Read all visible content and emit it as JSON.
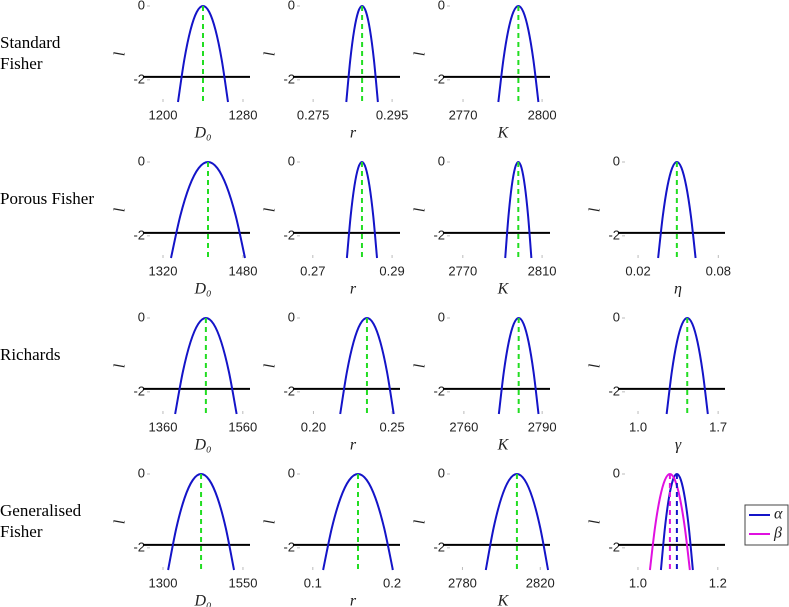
{
  "row_labels": [
    "Standard Fisher",
    "Porous Fisher",
    "Richards",
    "Generalised Fisher"
  ],
  "chart_data": [
    {
      "type": "line",
      "xlabel": "D₀",
      "ylabel": "l",
      "xlim": [
        1180,
        1287
      ],
      "ylim": [
        -2.6,
        0
      ],
      "xticks": [
        1200,
        1280
      ],
      "yticks": [
        0,
        -2
      ],
      "threshold": -1.92,
      "series": [
        {
          "color": "#1414c8",
          "mle": 1240,
          "mle_color": "#22dd22",
          "x": [
            1215,
            1221.25,
            1227.5,
            1233.75,
            1240,
            1246.25,
            1252.5,
            1258.75,
            1265
          ],
          "values": [
            -2.6,
            -1.4625,
            -0.65,
            -0.1625,
            0,
            -0.1625,
            -0.65,
            -1.4625,
            -2.6
          ]
        }
      ]
    },
    {
      "type": "line",
      "xlabel": "r",
      "ylabel": "l",
      "xlim": [
        0.2699,
        0.297
      ],
      "ylim": [
        -2.6,
        0
      ],
      "xticks": [
        0.275,
        0.295
      ],
      "yticks": [
        0,
        -2
      ],
      "threshold": -1.92,
      "series": [
        {
          "color": "#1414c8",
          "mle": 0.2874,
          "mle_color": "#22dd22",
          "x": [
            0.2834,
            0.2844,
            0.2854,
            0.2864,
            0.2874,
            0.2884,
            0.2894,
            0.2904,
            0.2914
          ],
          "values": [
            -2.6,
            -1.4625,
            -0.65,
            -0.1625,
            0,
            -0.1625,
            -0.65,
            -1.4625,
            -2.6
          ]
        }
      ]
    },
    {
      "type": "line",
      "xlabel": "K",
      "ylabel": "l",
      "xlim": [
        2762.4,
        2803
      ],
      "ylim": [
        -2.6,
        0
      ],
      "xticks": [
        2770,
        2800
      ],
      "yticks": [
        0,
        -2
      ],
      "threshold": -1.92,
      "series": [
        {
          "color": "#1414c8",
          "mle": 2791,
          "mle_color": "#22dd22",
          "x": [
            2783.4,
            2785.3,
            2787.2,
            2789.1,
            2791,
            2792.9,
            2794.8,
            2796.7,
            2798.6
          ],
          "values": [
            -2.6,
            -1.4625,
            -0.65,
            -0.1625,
            0,
            -0.1625,
            -0.65,
            -1.4625,
            -2.6
          ]
        }
      ]
    },
    {
      "type": "line",
      "xlabel": "D₀",
      "ylabel": "l",
      "xlim": [
        1280,
        1494
      ],
      "ylim": [
        -2.6,
        0
      ],
      "xticks": [
        1320,
        1480
      ],
      "yticks": [
        0,
        -2
      ],
      "threshold": -1.92,
      "series": [
        {
          "color": "#1414c8",
          "mle": 1410,
          "mle_color": "#22dd22",
          "x": [
            1336,
            1354.5,
            1373,
            1391.5,
            1410,
            1428.5,
            1447,
            1465.5,
            1484
          ],
          "values": [
            -2.6,
            -1.4625,
            -0.65,
            -0.1625,
            0,
            -0.1625,
            -0.65,
            -1.4625,
            -2.6
          ]
        }
      ]
    },
    {
      "type": "line",
      "xlabel": "r",
      "ylabel": "l",
      "xlim": [
        0.265,
        0.292
      ],
      "ylim": [
        -2.6,
        0
      ],
      "xticks": [
        0.27,
        0.29
      ],
      "yticks": [
        0,
        -2
      ],
      "threshold": -1.92,
      "series": [
        {
          "color": "#1414c8",
          "mle": 0.2824,
          "mle_color": "#22dd22",
          "x": [
            0.2786,
            0.27955,
            0.2805,
            0.28145,
            0.2824,
            0.28335,
            0.2843,
            0.28525,
            0.2862
          ],
          "values": [
            -2.6,
            -1.4625,
            -0.65,
            -0.1625,
            0,
            -0.1625,
            -0.65,
            -1.4625,
            -2.6
          ]
        }
      ]
    },
    {
      "type": "line",
      "xlabel": "K",
      "ylabel": "l",
      "xlim": [
        2760,
        2814
      ],
      "ylim": [
        -2.6,
        0
      ],
      "xticks": [
        2770,
        2810
      ],
      "yticks": [
        0,
        -2
      ],
      "threshold": -1.92,
      "series": [
        {
          "color": "#1414c8",
          "mle": 2798,
          "mle_color": "#22dd22",
          "x": [
            2791.4,
            2793.05,
            2794.7,
            2796.35,
            2798,
            2799.65,
            2801.3,
            2802.95,
            2804.6
          ],
          "values": [
            -2.6,
            -1.4625,
            -0.65,
            -0.1625,
            0,
            -0.1625,
            -0.65,
            -1.4625,
            -2.6
          ]
        }
      ]
    },
    {
      "type": "line",
      "xlabel": "η",
      "ylabel": "l",
      "xlim": [
        0.005,
        0.085
      ],
      "ylim": [
        -2.6,
        0
      ],
      "xticks": [
        0.02,
        0.08
      ],
      "yticks": [
        0,
        -2
      ],
      "threshold": -1.92,
      "series": [
        {
          "color": "#1414c8",
          "mle": 0.049,
          "mle_color": "#22dd22",
          "x": [
            0.035,
            0.0385,
            0.042,
            0.0455,
            0.049,
            0.0525,
            0.056,
            0.0595,
            0.063
          ],
          "values": [
            -2.6,
            -1.4625,
            -0.65,
            -0.1625,
            0,
            -0.1625,
            -0.65,
            -1.4625,
            -2.6
          ]
        }
      ]
    },
    {
      "type": "line",
      "xlabel": "D₀",
      "ylabel": "l",
      "xlim": [
        1310,
        1578
      ],
      "ylim": [
        -2.6,
        0
      ],
      "xticks": [
        1360,
        1560
      ],
      "yticks": [
        0,
        -2
      ],
      "threshold": -1.92,
      "series": [
        {
          "color": "#1414c8",
          "mle": 1467.5,
          "mle_color": "#22dd22",
          "x": [
            1390.5,
            1409.75,
            1429,
            1448.25,
            1467.5,
            1486.75,
            1506,
            1525.25,
            1544.5
          ],
          "values": [
            -2.6,
            -1.4625,
            -0.65,
            -0.1625,
            0,
            -0.1625,
            -0.65,
            -1.4625,
            -2.6
          ]
        }
      ]
    },
    {
      "type": "line",
      "xlabel": "r",
      "ylabel": "l",
      "xlim": [
        0.187,
        0.255
      ],
      "ylim": [
        -2.6,
        0
      ],
      "xticks": [
        {
          "value": 0.2,
          "label": "0.20"
        },
        0.25
      ],
      "yticks": [
        0,
        -2
      ],
      "threshold": -1.92,
      "series": [
        {
          "color": "#1414c8",
          "mle": 0.234,
          "mle_color": "#22dd22",
          "x": [
            0.217,
            0.22125,
            0.2255,
            0.22975,
            0.234,
            0.23825,
            0.2425,
            0.24675,
            0.251
          ],
          "values": [
            -2.6,
            -1.4625,
            -0.65,
            -0.1625,
            0,
            -0.1625,
            -0.65,
            -1.4625,
            -2.6
          ]
        }
      ]
    },
    {
      "type": "line",
      "xlabel": "K",
      "ylabel": "l",
      "xlim": [
        2752,
        2793
      ],
      "ylim": [
        -2.6,
        0
      ],
      "xticks": [
        2760,
        2790
      ],
      "yticks": [
        0,
        -2
      ],
      "threshold": -1.92,
      "series": [
        {
          "color": "#1414c8",
          "mle": 2781,
          "mle_color": "#22dd22",
          "x": [
            2773.4,
            2775.3,
            2777.2,
            2779.1,
            2781,
            2782.9,
            2784.8,
            2786.7,
            2788.6
          ],
          "values": [
            -2.6,
            -1.4625,
            -0.65,
            -0.1625,
            0,
            -0.1625,
            -0.65,
            -1.4625,
            -2.6
          ]
        }
      ]
    },
    {
      "type": "line",
      "xlabel": "γ",
      "ylabel": "l",
      "xlim": [
        0.825,
        1.76
      ],
      "ylim": [
        -2.6,
        0
      ],
      "xticks": [
        {
          "value": 1,
          "label": "1.0"
        },
        1.7
      ],
      "yticks": [
        0,
        -2
      ],
      "threshold": -1.92,
      "series": [
        {
          "color": "#1414c8",
          "mle": 1.43,
          "mle_color": "#22dd22",
          "x": [
            1.25,
            1.295,
            1.34,
            1.385,
            1.43,
            1.475,
            1.52,
            1.565,
            1.61
          ],
          "values": [
            -2.6,
            -1.4625,
            -0.65,
            -0.1625,
            0,
            -0.1625,
            -0.65,
            -1.4625,
            -2.6
          ]
        }
      ]
    },
    {
      "type": "line",
      "xlabel": "D₀",
      "ylabel": "l",
      "xlim": [
        1237.5,
        1572
      ],
      "ylim": [
        -2.6,
        0
      ],
      "xticks": [
        1300,
        1550
      ],
      "yticks": [
        0,
        -2
      ],
      "threshold": -1.92,
      "series": [
        {
          "color": "#1414c8",
          "mle": 1419,
          "mle_color": "#22dd22",
          "x": [
            1316,
            1341.75,
            1367.5,
            1393.25,
            1419,
            1444.75,
            1470.5,
            1496.25,
            1522
          ],
          "values": [
            -2.6,
            -1.4625,
            -0.65,
            -0.1625,
            0,
            -0.1625,
            -0.65,
            -1.4625,
            -2.6
          ]
        }
      ]
    },
    {
      "type": "line",
      "xlabel": "r",
      "ylabel": "l",
      "xlim": [
        0.075,
        0.21
      ],
      "ylim": [
        -2.6,
        0
      ],
      "xticks": [
        0.1,
        0.2
      ],
      "yticks": [
        0,
        -2
      ],
      "threshold": -1.92,
      "series": [
        {
          "color": "#1414c8",
          "mle": 0.157,
          "mle_color": "#22dd22",
          "x": [
            0.113,
            0.124,
            0.135,
            0.146,
            0.157,
            0.168,
            0.179,
            0.19,
            0.201
          ],
          "values": [
            -2.6,
            -1.4625,
            -0.65,
            -0.1625,
            0,
            -0.1625,
            -0.65,
            -1.4625,
            -2.6
          ]
        }
      ]
    },
    {
      "type": "line",
      "xlabel": "K",
      "ylabel": "l",
      "xlim": [
        2770,
        2825
      ],
      "ylim": [
        -2.6,
        0
      ],
      "xticks": [
        2780,
        2820
      ],
      "yticks": [
        0,
        -2
      ],
      "threshold": -1.92,
      "series": [
        {
          "color": "#1414c8",
          "mle": 2808,
          "mle_color": "#22dd22",
          "x": [
            2792,
            2796,
            2800,
            2804,
            2808,
            2812,
            2816,
            2820,
            2824
          ],
          "values": [
            -2.6,
            -1.4625,
            -0.65,
            -0.1625,
            0,
            -0.1625,
            -0.65,
            -1.4625,
            -2.6
          ]
        }
      ]
    },
    {
      "type": "line",
      "xlabel": "",
      "ylabel": "l",
      "xlim": [
        0.95,
        1.218
      ],
      "ylim": [
        -2.6,
        0
      ],
      "xticks": [
        {
          "value": 1,
          "label": "1.0"
        },
        1.2
      ],
      "yticks": [
        0,
        -2
      ],
      "threshold": -1.92,
      "legend": "outside right",
      "series": [
        {
          "name": "α",
          "color": "#1414c8",
          "mle": 1.0975,
          "mle_color": "#1414c8",
          "x": [
            1.0575,
            1.0675,
            1.0775,
            1.0875,
            1.0975,
            1.1075,
            1.1175,
            1.1275,
            1.1375
          ],
          "values": [
            -2.6,
            -1.4625,
            -0.65,
            -0.1625,
            0,
            -0.1625,
            -0.65,
            -1.4625,
            -2.6
          ]
        },
        {
          "name": "β",
          "color": "#e010e0",
          "mle": 1.08,
          "mle_color": "#e010e0",
          "x": [
            1.03,
            1.0425,
            1.055,
            1.0675,
            1.08,
            1.0925,
            1.105,
            1.1175,
            1.13
          ],
          "values": [
            -2.6,
            -1.4625,
            -0.65,
            -0.1625,
            0,
            -0.1625,
            -0.65,
            -1.4625,
            -2.6
          ]
        }
      ]
    }
  ]
}
